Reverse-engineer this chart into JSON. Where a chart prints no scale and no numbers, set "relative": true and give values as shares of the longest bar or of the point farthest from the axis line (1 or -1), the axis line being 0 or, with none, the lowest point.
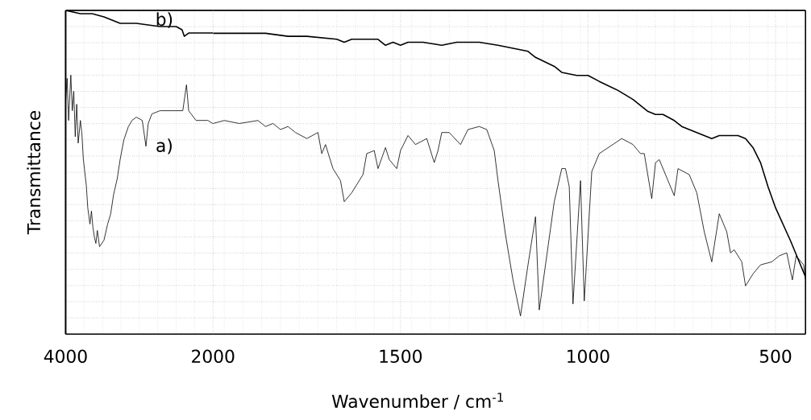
{
  "chart_data": [
    {
      "type": "line",
      "ylabel": "Transmittance",
      "relative": true,
      "grid": true,
      "xlim": [
        4000,
        2000
      ],
      "xticks": [
        4000,
        2000
      ],
      "series": [
        {
          "name": "a)",
          "color": "#000000",
          "x": [
            4000,
            3980,
            3960,
            3930,
            3910,
            3890,
            3870,
            3850,
            3830,
            3800,
            3780,
            3760,
            3740,
            3720,
            3700,
            3670,
            3650,
            3630,
            3610,
            3590,
            3570,
            3540,
            3480,
            3430,
            3390,
            3350,
            3300,
            3260,
            3210,
            3150,
            3100,
            3040,
            2960,
            2910,
            2880,
            2830,
            2720,
            2610,
            2500,
            2410,
            2360,
            2330,
            2230,
            2070,
            2000
          ],
          "values": [
            0.72,
            0.79,
            0.66,
            0.8,
            0.69,
            0.75,
            0.61,
            0.71,
            0.59,
            0.66,
            0.62,
            0.54,
            0.5,
            0.46,
            0.39,
            0.34,
            0.38,
            0.33,
            0.3,
            0.28,
            0.32,
            0.27,
            0.29,
            0.34,
            0.37,
            0.43,
            0.48,
            0.54,
            0.6,
            0.64,
            0.66,
            0.67,
            0.66,
            0.58,
            0.65,
            0.68,
            0.69,
            0.69,
            0.69,
            0.69,
            0.77,
            0.69,
            0.66,
            0.66,
            0.65
          ]
        },
        {
          "name": "b)",
          "color": "#000000",
          "x": [
            4000,
            3800,
            3640,
            3480,
            3260,
            3040,
            2720,
            2500,
            2420,
            2390,
            2330,
            2230,
            2000
          ],
          "values": [
            1.0,
            0.99,
            0.99,
            0.98,
            0.96,
            0.96,
            0.95,
            0.95,
            0.94,
            0.92,
            0.93,
            0.93,
            0.93
          ]
        }
      ]
    },
    {
      "type": "line",
      "xlabel": "Wavenumber / cm$^{-1}$",
      "relative": true,
      "grid": true,
      "xlim": [
        2000,
        420
      ],
      "xticks": [
        1500,
        1000,
        500
      ],
      "series": [
        {
          "color": "#000000",
          "x": [
            2000,
            1970,
            1930,
            1880,
            1860,
            1840,
            1820,
            1800,
            1780,
            1750,
            1720,
            1710,
            1700,
            1680,
            1660,
            1650,
            1630,
            1610,
            1600,
            1590,
            1570,
            1560,
            1540,
            1530,
            1510,
            1500,
            1480,
            1460,
            1430,
            1410,
            1400,
            1390,
            1370,
            1340,
            1320,
            1290,
            1270,
            1250,
            1240,
            1220,
            1200,
            1180,
            1160,
            1140,
            1130,
            1100,
            1090,
            1070,
            1060,
            1050,
            1040,
            1020,
            1010,
            990,
            970,
            910,
            880,
            860,
            850,
            830,
            820,
            810,
            770,
            760,
            730,
            710,
            690,
            670,
            650,
            630,
            620,
            610,
            590,
            580,
            560,
            540,
            510,
            490,
            470,
            455,
            445,
            425,
            420
          ],
          "values": [
            0.7,
            0.71,
            0.7,
            0.71,
            0.69,
            0.7,
            0.68,
            0.69,
            0.67,
            0.65,
            0.67,
            0.6,
            0.63,
            0.55,
            0.51,
            0.44,
            0.47,
            0.51,
            0.53,
            0.6,
            0.61,
            0.55,
            0.62,
            0.58,
            0.55,
            0.61,
            0.66,
            0.63,
            0.65,
            0.57,
            0.61,
            0.67,
            0.67,
            0.63,
            0.68,
            0.69,
            0.68,
            0.61,
            0.51,
            0.33,
            0.18,
            0.06,
            0.23,
            0.39,
            0.08,
            0.35,
            0.44,
            0.55,
            0.55,
            0.49,
            0.1,
            0.51,
            0.11,
            0.54,
            0.6,
            0.65,
            0.63,
            0.6,
            0.6,
            0.45,
            0.57,
            0.58,
            0.46,
            0.55,
            0.53,
            0.47,
            0.34,
            0.24,
            0.4,
            0.34,
            0.27,
            0.28,
            0.24,
            0.16,
            0.2,
            0.23,
            0.24,
            0.26,
            0.27,
            0.18,
            0.26,
            0.23,
            0.18
          ]
        },
        {
          "color": "#000000",
          "x": [
            2000,
            1930,
            1860,
            1800,
            1750,
            1670,
            1650,
            1630,
            1560,
            1540,
            1520,
            1500,
            1480,
            1440,
            1390,
            1350,
            1290,
            1240,
            1200,
            1160,
            1140,
            1090,
            1070,
            1030,
            1000,
            970,
            920,
            880,
            860,
            840,
            820,
            800,
            770,
            750,
            730,
            710,
            690,
            670,
            650,
            620,
            600,
            580,
            560,
            540,
            520,
            500,
            460,
            440,
            430,
            420
          ],
          "values": [
            1.0,
            1.0,
            1.0,
            0.99,
            0.99,
            0.98,
            0.97,
            0.98,
            0.98,
            0.96,
            0.97,
            0.96,
            0.97,
            0.97,
            0.96,
            0.97,
            0.97,
            0.96,
            0.95,
            0.94,
            0.92,
            0.89,
            0.87,
            0.86,
            0.86,
            0.84,
            0.81,
            0.78,
            0.76,
            0.74,
            0.73,
            0.73,
            0.71,
            0.69,
            0.68,
            0.67,
            0.66,
            0.65,
            0.66,
            0.66,
            0.66,
            0.65,
            0.62,
            0.57,
            0.49,
            0.42,
            0.31,
            0.25,
            0.22,
            0.19
          ]
        }
      ]
    }
  ]
}
